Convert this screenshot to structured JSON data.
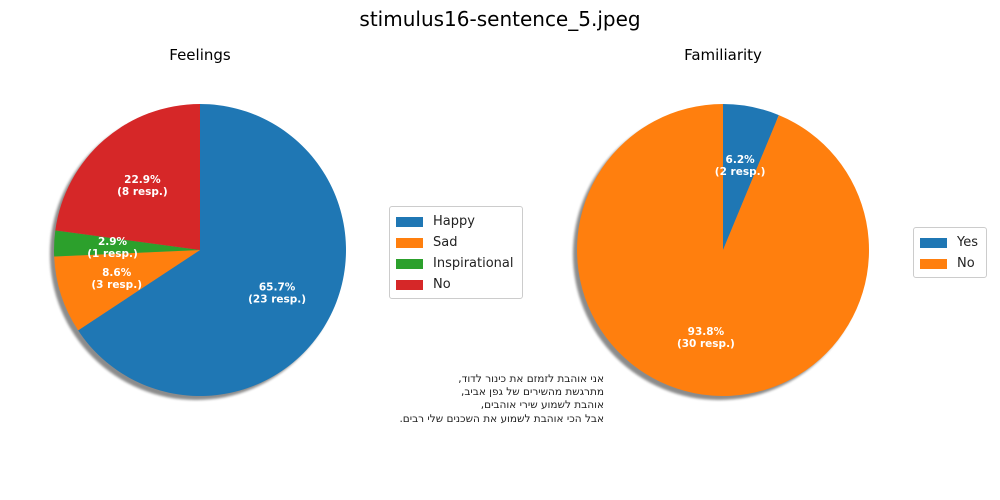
{
  "suptitle": "stimulus16-sentence_5.jpeg",
  "stimulus_text": [
    "אני אוהבת לזמזם את כינור לדוד,",
    "מתרגשת מהשירים של גפן אביב,",
    "אוהבת לשמוע שירי אוהבים,",
    "אבל הכי אוהבת לשמוע את השכנים שלי רבים."
  ],
  "chart_data": [
    {
      "type": "pie",
      "title": "Feelings",
      "labels": [
        "Happy",
        "Sad",
        "Inspirational",
        "No"
      ],
      "counts": [
        23,
        3,
        1,
        8
      ],
      "percent_labels": [
        "65.7%",
        "8.6%",
        "2.9%",
        "22.9%"
      ],
      "count_labels": [
        "(23 resp.)",
        "(3 resp.)",
        "(1 resp.)",
        "(8 resp.)"
      ],
      "colors": [
        "#1f77b4",
        "#ff7f0e",
        "#2ca02c",
        "#d62728"
      ],
      "start_angle_deg": 90,
      "shadow": true,
      "legend": "right"
    },
    {
      "type": "pie",
      "title": "Familiarity",
      "labels": [
        "Yes",
        "No"
      ],
      "counts": [
        2,
        30
      ],
      "percent_labels": [
        "6.2%",
        "93.8%"
      ],
      "count_labels": [
        "(2 resp.)",
        "(30 resp.)"
      ],
      "colors": [
        "#1f77b4",
        "#ff7f0e"
      ],
      "start_angle_deg": 90,
      "shadow": true,
      "legend": "right"
    }
  ]
}
